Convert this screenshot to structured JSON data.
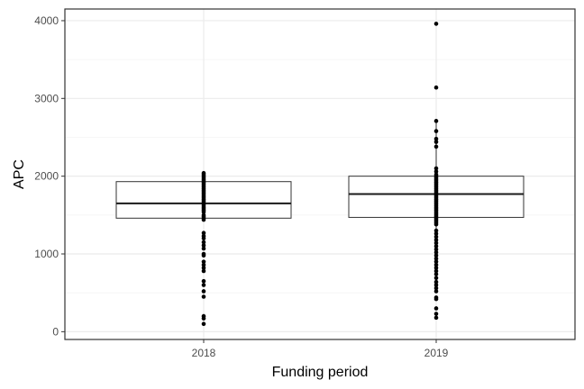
{
  "chart_data": {
    "type": "boxplot",
    "title": "",
    "xlabel": "Funding period",
    "ylabel": "APC",
    "categories": [
      "2018",
      "2019"
    ],
    "ylim": [
      -100,
      4150
    ],
    "yticks": [
      0,
      1000,
      2000,
      3000,
      4000
    ],
    "grid": true,
    "legend": "none",
    "colors": {
      "box_fill": "#ffffff",
      "box_stroke": "#333333",
      "median": "#1a1a1a",
      "points": "#000000",
      "grid_major": "#ebebeb",
      "grid_minor": "#f4f4f4",
      "panel_border": "#333333"
    },
    "boxes": [
      {
        "category": "2018",
        "q1": 1460,
        "median": 1650,
        "q3": 1930,
        "whisker_low": 1460,
        "whisker_high": 2040
      },
      {
        "category": "2019",
        "q1": 1470,
        "median": 1770,
        "q3": 2000,
        "whisker_low": 760,
        "whisker_high": 2710
      }
    ],
    "points": [
      {
        "category": "2018",
        "values": [
          2040,
          2020,
          2000,
          1980,
          1960,
          1940,
          1920,
          1900,
          1880,
          1860,
          1840,
          1820,
          1800,
          1780,
          1760,
          1740,
          1720,
          1700,
          1680,
          1660,
          1640,
          1620,
          1600,
          1580,
          1560,
          1540,
          1500,
          1480,
          1460,
          1440,
          1270,
          1230,
          1200,
          1150,
          1110,
          1070,
          1000,
          980,
          900,
          860,
          820,
          780,
          650,
          600,
          520,
          450,
          200,
          170,
          100
        ]
      },
      {
        "category": "2019",
        "values": [
          3960,
          3140,
          2710,
          2580,
          2480,
          2440,
          2380,
          2100,
          2060,
          2020,
          2000,
          1980,
          1960,
          1940,
          1920,
          1900,
          1880,
          1860,
          1840,
          1820,
          1800,
          1780,
          1760,
          1740,
          1720,
          1700,
          1680,
          1660,
          1640,
          1620,
          1600,
          1580,
          1560,
          1540,
          1520,
          1500,
          1480,
          1460,
          1440,
          1420,
          1400,
          1380,
          1300,
          1260,
          1220,
          1180,
          1140,
          1100,
          1060,
          1020,
          980,
          940,
          900,
          860,
          820,
          780,
          740,
          690,
          640,
          600,
          560,
          520,
          440,
          420,
          300,
          230,
          180
        ]
      }
    ]
  }
}
